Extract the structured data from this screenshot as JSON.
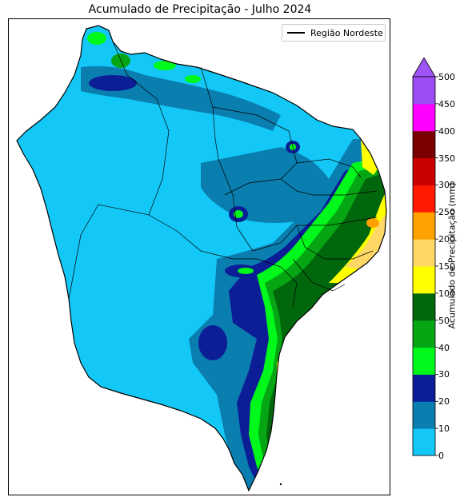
{
  "title": "Acumulado de Precipitação - Julho 2024",
  "legend": {
    "label": "Região Nordeste",
    "line_color": "#000000"
  },
  "colorbar": {
    "label": "Acumulado de Precipitação (mm)",
    "extend": "max",
    "ticks": [
      "0",
      "10",
      "20",
      "30",
      "40",
      "50",
      "100",
      "150",
      "200",
      "250",
      "300",
      "350",
      "400",
      "450",
      "500"
    ],
    "colors": [
      "#13c8f7",
      "#0b7eb0",
      "#0b1e96",
      "#00f81b",
      "#05a513",
      "#00670c",
      "#ffff00",
      "#ffd766",
      "#ffa100",
      "#ff1a00",
      "#c80000",
      "#7a0000",
      "#ff00ff",
      "#9c4df5"
    ],
    "extend_color": "#9e54f5"
  },
  "map_icons": {
    "shape": "region-outline-icon"
  }
}
